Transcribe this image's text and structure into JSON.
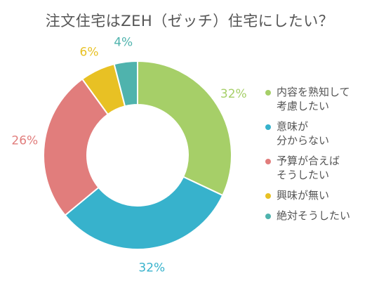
{
  "chart_data": {
    "type": "pie",
    "title": "注文住宅はZEH（ゼッチ）住宅にしたい？",
    "categories": [
      "内容を熟知して考慮したい",
      "意味が分からない",
      "予算が合えばそうしたい",
      "興味が無い",
      "絶対そうしたい"
    ],
    "values": [
      32,
      32,
      26,
      6,
      4
    ],
    "value_labels": [
      "32%",
      "32%",
      "26%",
      "6%",
      "4%"
    ],
    "colors": [
      "#a6cf68",
      "#37b2cc",
      "#e17d7c",
      "#e8c124",
      "#4fb3ad"
    ],
    "donut": true,
    "legend": {
      "placement": "right",
      "items": [
        {
          "lines": [
            "内容を熟知して",
            "考慮したい"
          ]
        },
        {
          "lines": [
            "意味が",
            "分からない"
          ]
        },
        {
          "lines": [
            "予算が合えば",
            "そうしたい"
          ]
        },
        {
          "lines": [
            "興味が無い"
          ]
        },
        {
          "lines": [
            "絶対そうしたい"
          ]
        }
      ]
    }
  }
}
